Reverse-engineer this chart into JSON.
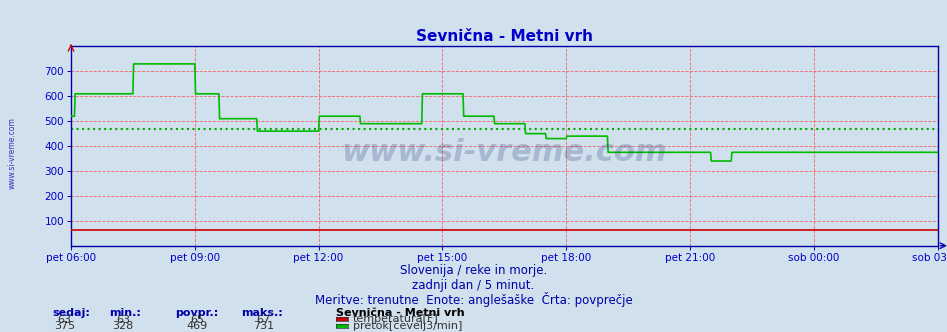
{
  "title": "Sevnična - Metni vrh",
  "bg_color": "#d0e0ec",
  "plot_bg_color": "#d0e0ec",
  "grid_color": "#ff4444",
  "avg_line_color": "#00aa00",
  "title_color": "#0000cc",
  "tick_color": "#0000cc",
  "spine_color": "#0000aa",
  "ylim": [
    0,
    800
  ],
  "yticks": [
    100,
    200,
    300,
    400,
    500,
    600,
    700
  ],
  "x_total_minutes": 1260,
  "xtick_positions": [
    0,
    180,
    360,
    540,
    720,
    900,
    1080,
    1260
  ],
  "xtick_labels": [
    "pet 06:00",
    "pet 09:00",
    "pet 12:00",
    "pet 15:00",
    "pet 18:00",
    "pet 21:00",
    "sob 00:00",
    "sob 03:00"
  ],
  "avg_pretok": 469,
  "watermark": "www.si-vreme.com",
  "footer_line1": "Slovenija / reke in morje.",
  "footer_line2": "zadnji dan / 5 minut.",
  "footer_line3": "Meritve: trenutne  Enote: anglešaške  Črta: povprečje",
  "legend_title": "Sevnična - Metni vrh",
  "legend_entries": [
    {
      "label": "temperatura[F]",
      "color": "#cc0000",
      "sedaj": 63,
      "min": 63,
      "povpr": 65,
      "maks": 67
    },
    {
      "label": "pretok[čevelj3/min]",
      "color": "#00bb00",
      "sedaj": 375,
      "min": 328,
      "povpr": 469,
      "maks": 731
    }
  ],
  "pretok_x": [
    0,
    1,
    5,
    6,
    60,
    61,
    90,
    91,
    180,
    181,
    210,
    211,
    215,
    216,
    230,
    231,
    270,
    271,
    360,
    361,
    390,
    391,
    420,
    421,
    480,
    481,
    510,
    511,
    540,
    541,
    570,
    571,
    600,
    601,
    615,
    616,
    630,
    631,
    660,
    661,
    690,
    691,
    720,
    721,
    750,
    751,
    780,
    781,
    810,
    811,
    900,
    901,
    930,
    931,
    960,
    961,
    1260
  ],
  "pretok_y": [
    520,
    520,
    520,
    610,
    610,
    610,
    610,
    730,
    730,
    610,
    610,
    610,
    610,
    510,
    510,
    510,
    510,
    460,
    460,
    520,
    520,
    520,
    520,
    490,
    490,
    490,
    490,
    610,
    610,
    610,
    610,
    520,
    520,
    520,
    520,
    490,
    490,
    490,
    490,
    450,
    450,
    430,
    430,
    440,
    440,
    440,
    440,
    375,
    375,
    375,
    375,
    375,
    375,
    340,
    340,
    375,
    375
  ],
  "temp_value": 63
}
